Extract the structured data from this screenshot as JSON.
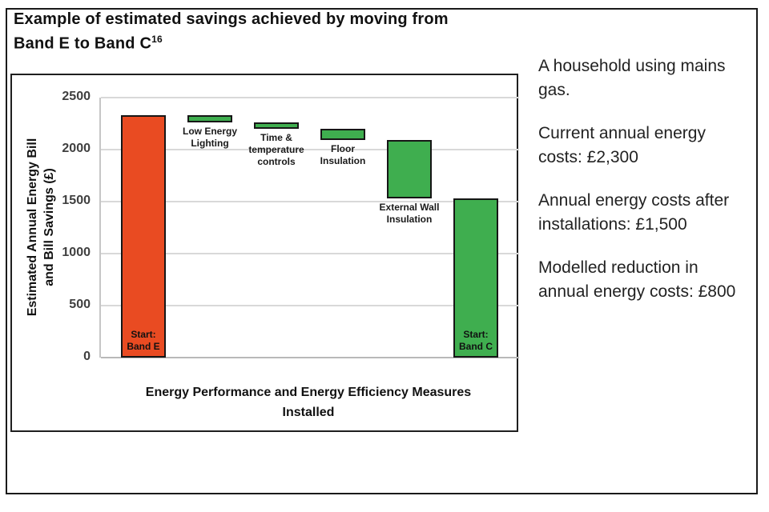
{
  "figure": {
    "title_line1": "Example of estimated savings achieved by moving from",
    "title_line2": "Band E to Band C",
    "title_footnote_ref": "16"
  },
  "chart_data": {
    "type": "bar",
    "subtype": "waterfall",
    "title": "",
    "ylabel": "Estimated Annual Energy Bill and Bill Savings (£)",
    "ylabel_lines": "Estimated Annual Energy Bill\nand Bill Savings (£)",
    "xlabel": "Energy Performance and Energy Efficiency Measures Installed",
    "xlabel_lines": "Energy Performance and Energy Efficiency Measures\nInstalled",
    "ylim": [
      0,
      2500
    ],
    "yticks": [
      0,
      500,
      1000,
      1500,
      2000,
      2500
    ],
    "grid": true,
    "legend": "none",
    "bars": [
      {
        "label": "Start: Band E",
        "label_lines": "Start:\nBand E",
        "label_position": "inside-bottom",
        "start": 0,
        "end": 2330,
        "value": 2330,
        "color": "#E94B22",
        "role": "total"
      },
      {
        "label": "Low Energy Lighting",
        "label_lines": "Low Energy\nLighting",
        "label_position": "below",
        "start": 2260,
        "end": 2330,
        "saving": 70,
        "color": "#3FAE4F",
        "role": "saving"
      },
      {
        "label": "Time & temperature controls",
        "label_lines": "Time &\ntemperature\ncontrols",
        "label_position": "below",
        "start": 2200,
        "end": 2260,
        "saving": 60,
        "color": "#3FAE4F",
        "role": "saving"
      },
      {
        "label": "Floor Insulation",
        "label_lines": "Floor\nInsulation",
        "label_position": "below",
        "start": 2090,
        "end": 2200,
        "saving": 110,
        "color": "#3FAE4F",
        "role": "saving"
      },
      {
        "label": "External Wall Insulation",
        "label_lines": "External Wall\nInsulation",
        "label_position": "below",
        "start": 1530,
        "end": 2090,
        "saving": 560,
        "color": "#3FAE4F",
        "role": "saving"
      },
      {
        "label": "Start: Band C",
        "label_lines": "Start:\nBand C",
        "label_position": "inside-bottom",
        "start": 0,
        "end": 1530,
        "value": 1530,
        "color": "#3FAE4F",
        "role": "total"
      }
    ]
  },
  "notes": [
    {
      "text": "A household using mains gas.",
      "lines": "A household using mains\ngas."
    },
    {
      "text": "Current annual energy costs: £2,300",
      "lines": "Current annual energy\ncosts: £2,300"
    },
    {
      "text": "Annual energy costs after installations: £1,500",
      "lines": "Annual energy costs after\ninstallations: £1,500"
    },
    {
      "text": "Modelled reduction in annual energy costs: £800",
      "lines": "Modelled reduction in\nannual energy costs: £800"
    }
  ],
  "colors": {
    "band_e_bar": "#E94B22",
    "saving_bar": "#3FAE4F",
    "bar_border": "#161616",
    "gridline": "#D9D9D9",
    "tick_text": "#3F3F3F",
    "frame_border": "#1A1A1A"
  }
}
